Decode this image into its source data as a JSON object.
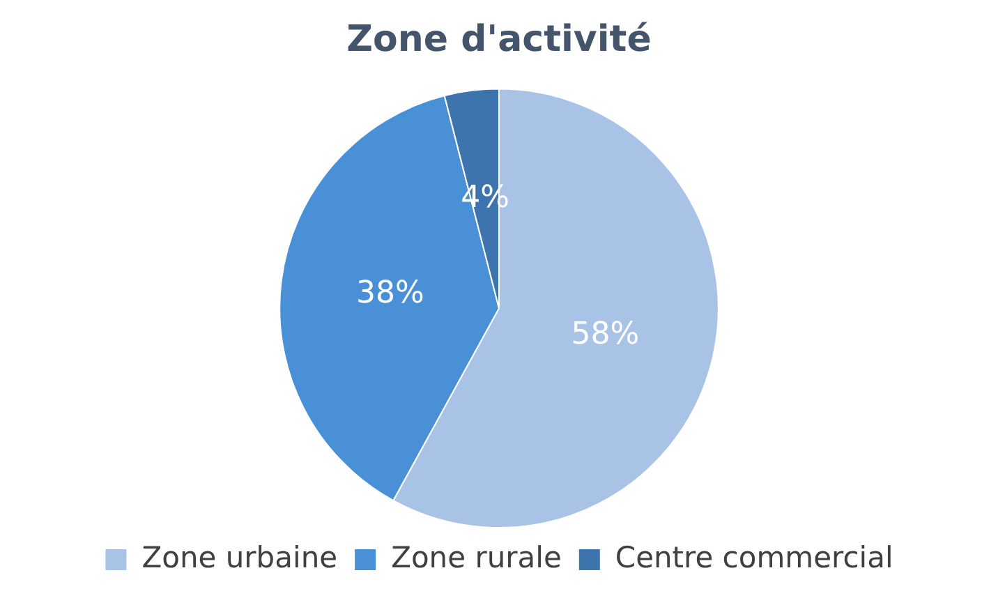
{
  "chart_data": {
    "type": "pie",
    "title": "Zone d'activité",
    "categories": [
      "Zone urbaine",
      "Zone rurale",
      "Centre commercial"
    ],
    "values": [
      58,
      38,
      4
    ],
    "value_labels": [
      "58%",
      "38%",
      "4%"
    ],
    "colors": [
      "#a8c3e6",
      "#4a90d6",
      "#3d74ad"
    ],
    "legend": "bottom"
  }
}
